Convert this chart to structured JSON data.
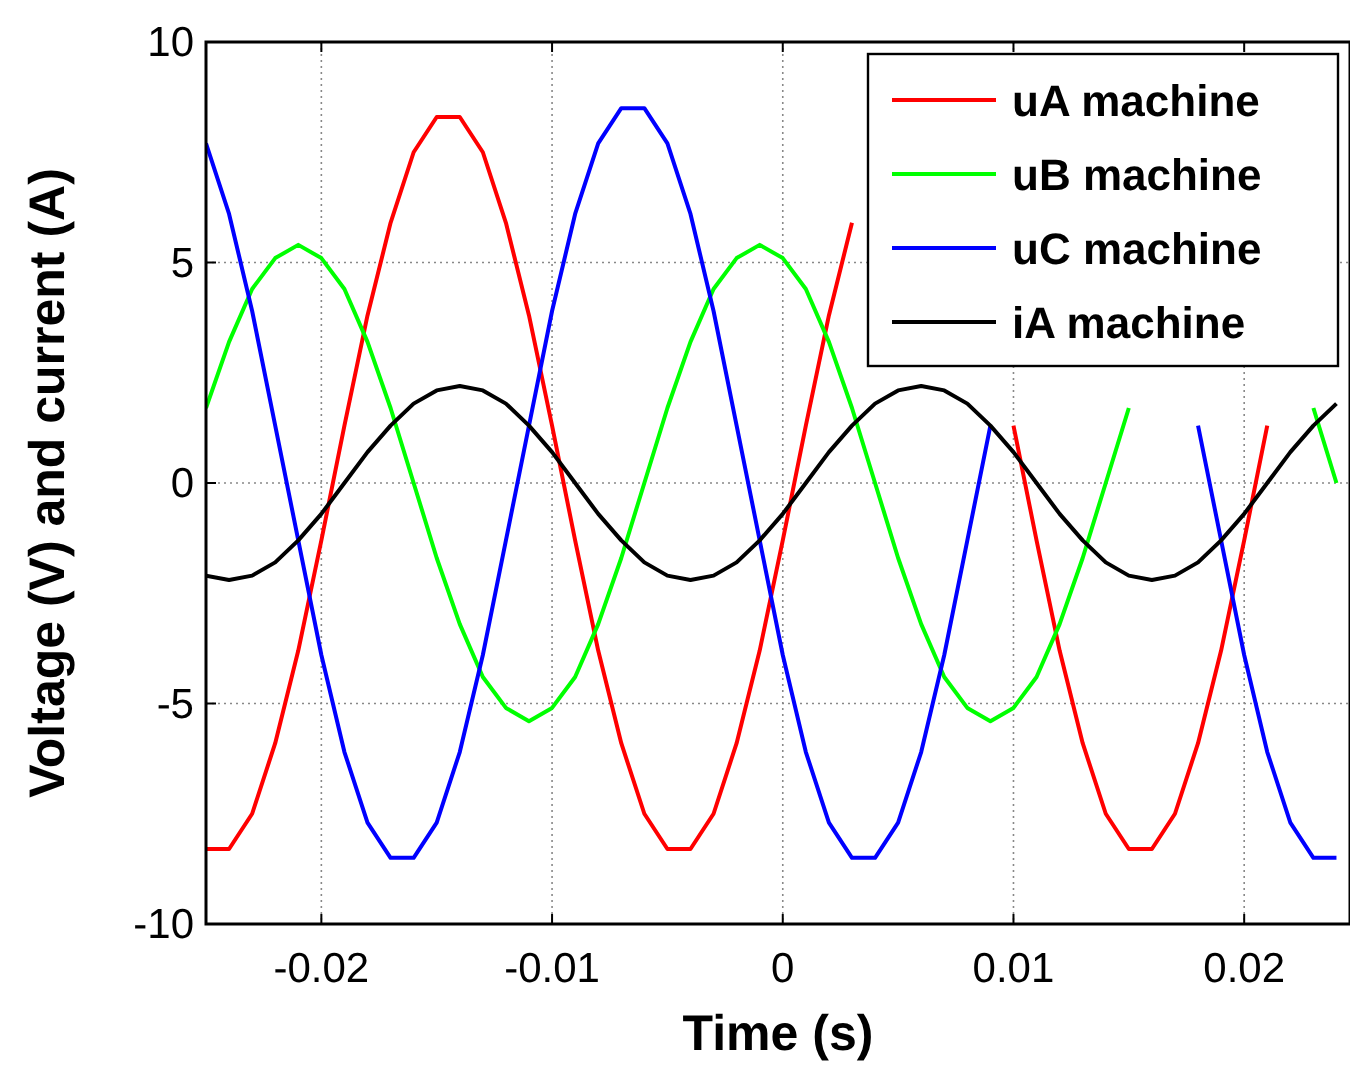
{
  "chart_data": {
    "type": "line",
    "xlabel": "Time (s)",
    "ylabel": "Voltage (V) and current (A)",
    "x": [
      -0.025,
      -0.024,
      -0.023,
      -0.022,
      -0.021,
      -0.02,
      -0.019,
      -0.018,
      -0.017,
      -0.016,
      -0.015,
      -0.014,
      -0.013,
      -0.012,
      -0.011,
      -0.01,
      -0.009,
      -0.008,
      -0.007,
      -0.006,
      -0.005,
      -0.004,
      -0.003,
      -0.002,
      -0.001,
      0,
      0.001,
      0.002,
      0.003,
      0.004,
      0.005,
      0.006,
      0.007,
      0.008,
      0.009,
      0.01,
      0.011,
      0.012,
      0.013,
      0.014,
      0.015,
      0.016,
      0.017,
      0.018,
      0.019,
      0.02,
      0.021,
      0.022,
      0.023,
      0.024
    ],
    "series": [
      {
        "name": "uA machine",
        "color": "#ff0000",
        "values": [
          -8.3,
          -8.3,
          -7.5,
          -5.9,
          -3.8,
          -1.3,
          1.3,
          3.8,
          5.9,
          7.5,
          8.3,
          8.3,
          7.5,
          5.9,
          3.8,
          1.3,
          -1.3,
          -3.8,
          -5.9,
          -7.5,
          -8.3,
          -8.3,
          -7.5,
          -5.9,
          -3.8,
          -1.3,
          1.3,
          3.8,
          5.9,
          null,
          null,
          null,
          null,
          null,
          null,
          1.3,
          -1.3,
          -3.8,
          -5.9,
          -7.5,
          -8.3,
          -8.3,
          -7.5,
          -5.9,
          -3.8,
          -1.3,
          1.3,
          null,
          null,
          null
        ]
      },
      {
        "name": "uB machine",
        "color": "#00ff00",
        "values": [
          1.7,
          3.2,
          4.4,
          5.1,
          5.4,
          5.1,
          4.4,
          3.2,
          1.7,
          0,
          -1.7,
          -3.2,
          -4.4,
          -5.1,
          -5.4,
          -5.1,
          -4.4,
          -3.2,
          -1.7,
          0,
          1.7,
          3.2,
          4.4,
          5.1,
          5.4,
          5.1,
          4.4,
          3.2,
          1.7,
          0,
          -1.7,
          -3.2,
          -4.4,
          -5.1,
          -5.4,
          -5.1,
          -4.4,
          -3.2,
          -1.7,
          0,
          1.7,
          null,
          null,
          null,
          null,
          null,
          null,
          null,
          1.7,
          0
        ]
      },
      {
        "name": "uC machine",
        "color": "#0000ff",
        "values": [
          7.7,
          6.1,
          3.9,
          1.3,
          -1.3,
          -3.9,
          -6.1,
          -7.7,
          -8.5,
          -8.5,
          -7.7,
          -6.1,
          -3.9,
          -1.3,
          1.3,
          3.9,
          6.1,
          7.7,
          8.5,
          8.5,
          7.7,
          6.1,
          3.9,
          1.3,
          -1.3,
          -3.9,
          -6.1,
          -7.7,
          -8.5,
          -8.5,
          -7.7,
          -6.1,
          -3.9,
          -1.3,
          1.3,
          null,
          null,
          null,
          null,
          null,
          null,
          null,
          null,
          1.3,
          -1.3,
          -3.9,
          -6.1,
          -7.7,
          -8.5,
          -8.5
        ]
      },
      {
        "name": "iA machine",
        "color": "#000000",
        "values": [
          -2.1,
          -2.2,
          -2.1,
          -1.8,
          -1.3,
          -0.7,
          0,
          0.7,
          1.3,
          1.8,
          2.1,
          2.2,
          2.1,
          1.8,
          1.3,
          0.7,
          0,
          -0.7,
          -1.3,
          -1.8,
          -2.1,
          -2.2,
          -2.1,
          -1.8,
          -1.3,
          -0.7,
          0,
          0.7,
          1.3,
          1.8,
          2.1,
          2.2,
          2.1,
          1.8,
          1.3,
          0.7,
          0,
          -0.7,
          -1.3,
          -1.8,
          -2.1,
          -2.2,
          -2.1,
          -1.8,
          -1.3,
          -0.7,
          0,
          0.7,
          1.3,
          1.8
        ]
      }
    ],
    "xlim": [
      -0.025,
      0.0245
    ],
    "xticks": [
      -0.02,
      -0.01,
      0,
      0.01,
      0.02
    ],
    "ylim": [
      -10,
      10
    ],
    "yticks": [
      -10,
      -5,
      0,
      5,
      10
    ],
    "grid": true,
    "legend": "top right",
    "marker": "none",
    "line_style": "solid"
  }
}
